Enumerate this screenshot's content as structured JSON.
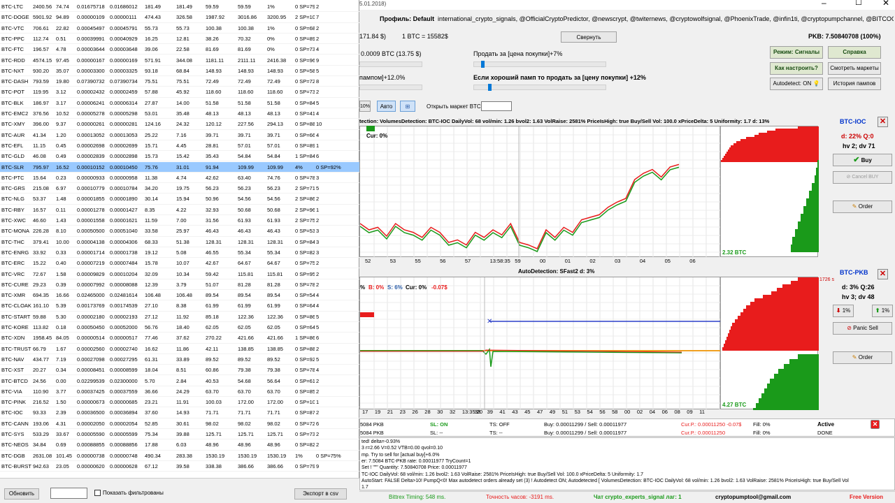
{
  "table": {
    "rows": [
      [
        "BTC-LTC",
        "2400.56",
        "74.74",
        "0.01675718",
        "0.01686012",
        "181.49",
        "181.49",
        "59.59",
        "59.59",
        "1%",
        "0 SP=79%",
        "2"
      ],
      [
        "BTC-DOGE",
        "5901.92",
        "94.89",
        "0.00000109",
        "0.00000111",
        "474.43",
        "326.58",
        "1987.92",
        "3016.86",
        "3200.95",
        "2 SP=100%",
        "7"
      ],
      [
        "BTC-VTC",
        "706.61",
        "22.82",
        "0.00045497",
        "0.00045791",
        "55.73",
        "55.73",
        "100.38",
        "100.38",
        "1%",
        "0 SP=68%",
        "2"
      ],
      [
        "BTC-PPC",
        "112.74",
        "0.51",
        "0.00039991",
        "0.00040929",
        "16.25",
        "12.81",
        "38.26",
        "70.32",
        "0%",
        "0 SP=89%",
        "2"
      ],
      [
        "BTC-FTC",
        "196.57",
        "4.78",
        "0.00003644",
        "0.00003648",
        "39.06",
        "22.58",
        "81.69",
        "81.69",
        "0%",
        "0 SP=73%",
        "4"
      ],
      [
        "BTC-RDD",
        "4574.15",
        "97.45",
        "0.00000167",
        "0.00000169",
        "571.91",
        "344.08",
        "1181.11",
        "2111.11",
        "2416.38",
        "0 SP=96%",
        "9"
      ],
      [
        "BTC-NXT",
        "930.20",
        "35.07",
        "0.00003300",
        "0.00003325",
        "93.18",
        "68.84",
        "148.93",
        "148.93",
        "148.93",
        "0 SP=58%",
        "5"
      ],
      [
        "BTC-DASH",
        "793.59",
        "19.80",
        "0.07390732",
        "0.07390734",
        "75.51",
        "75.51",
        "72.49",
        "72.49",
        "72.49",
        "0 SP=72%",
        "8"
      ],
      [
        "BTC-POT",
        "119.95",
        "3.12",
        "0.00002432",
        "0.00002459",
        "57.88",
        "45.92",
        "118.60",
        "118.60",
        "118.60",
        "0 SP=73%",
        "2"
      ],
      [
        "BTC-BLK",
        "186.97",
        "3.17",
        "0.00006241",
        "0.00006314",
        "27.87",
        "14.00",
        "51.58",
        "51.58",
        "51.58",
        "0 SP=84%",
        "5"
      ],
      [
        "BTC-EMC2",
        "376.56",
        "10.52",
        "0.00005278",
        "0.00005298",
        "53.01",
        "35.48",
        "48.13",
        "48.13",
        "48.13",
        "0 SP=41%",
        "4"
      ],
      [
        "BTC-XMY",
        "396.00",
        "9.37",
        "0.00000261",
        "0.00000281",
        "124.16",
        "24.32",
        "120.12",
        "227.56",
        "294.13",
        "0 SP=88%",
        "10"
      ],
      [
        "BTC-AUR",
        "41.34",
        "1.20",
        "0.00013052",
        "0.00013053",
        "25.22",
        "7.16",
        "39.71",
        "39.71",
        "39.71",
        "0 SP=66%",
        "4"
      ],
      [
        "BTC-EFL",
        "11.15",
        "0.45",
        "0.00002698",
        "0.00002699",
        "15.71",
        "4.45",
        "28.81",
        "57.01",
        "57.01",
        "0 SP=89%",
        "1"
      ],
      [
        "BTC-GLD",
        "46.08",
        "0.49",
        "0.00002839",
        "0.00002898",
        "15.73",
        "15.42",
        "35.43",
        "54.84",
        "54.84",
        "1 SP=84%",
        "6"
      ],
      [
        "BTC-SLR",
        "795.97",
        "16.52",
        "0.00010152",
        "0.00010450",
        "75.76",
        "31.01",
        "91.94",
        "109.99",
        "109.99",
        "4%",
        "0 SP=92%",
        "2"
      ],
      [
        "BTC-PTC",
        "15.64",
        "0.23",
        "0.00000933",
        "0.00000958",
        "11.38",
        "4.74",
        "42.62",
        "63.40",
        "74.76",
        "0 SP=78%",
        "3"
      ],
      [
        "BTC-GRS",
        "215.08",
        "6.97",
        "0.00010779",
        "0.00010784",
        "34.20",
        "19.75",
        "56.23",
        "56.23",
        "56.23",
        "2 SP=71%",
        "5"
      ],
      [
        "BTC-NLG",
        "53.37",
        "1.48",
        "0.00001855",
        "0.00001890",
        "30.14",
        "15.94",
        "50.96",
        "54.56",
        "54.56",
        "2 SP=86%",
        "2"
      ],
      [
        "BTC-RBY",
        "16.57",
        "0.11",
        "0.00001278",
        "0.00001427",
        "8.35",
        "4.22",
        "32.93",
        "50.68",
        "50.68",
        "2 SP=96%",
        "1"
      ],
      [
        "BTC-XWC",
        "46.60",
        "1.43",
        "0.00001558",
        "0.00001621",
        "11.59",
        "7.00",
        "31.56",
        "61.93",
        "61.93",
        "2 SP=75%",
        "2"
      ],
      [
        "BTC-MONA",
        "226.28",
        "8.10",
        "0.00050500",
        "0.00051040",
        "33.58",
        "25.97",
        "46.43",
        "46.43",
        "46.43",
        "0 SP=53%",
        "3"
      ],
      [
        "BTC-THC",
        "379.41",
        "10.00",
        "0.00004138",
        "0.00004306",
        "68.33",
        "51.38",
        "128.31",
        "128.31",
        "128.31",
        "0 SP=84%",
        "3"
      ],
      [
        "BTC-ENRG",
        "33.92",
        "0.33",
        "0.00001714",
        "0.00001738",
        "19.12",
        "5.08",
        "46.55",
        "55.34",
        "55.34",
        "0 SP=82%",
        "3"
      ],
      [
        "BTC-ERC",
        "15.22",
        "0.40",
        "0.00007219",
        "0.00007484",
        "15.78",
        "10.07",
        "42.67",
        "64.67",
        "64.67",
        "0 SP=75%",
        "2"
      ],
      [
        "BTC-VRC",
        "72.67",
        "1.58",
        "0.00009829",
        "0.00010204",
        "32.09",
        "10.34",
        "59.42",
        "115.81",
        "115.81",
        "0 SP=95%",
        "2"
      ],
      [
        "BTC-CURE",
        "29.23",
        "0.39",
        "0.00007992",
        "0.00008088",
        "12.39",
        "3.79",
        "51.07",
        "81.28",
        "81.28",
        "0 SP=78%",
        "2"
      ],
      [
        "BTC-XMR",
        "694.35",
        "16.66",
        "0.02465000",
        "0.02481614",
        "106.48",
        "106.48",
        "89.54",
        "89.54",
        "89.54",
        "0 SP=54%",
        "4"
      ],
      [
        "BTC-CLOAK",
        "161.10",
        "5.39",
        "0.00173769",
        "0.00174539",
        "27.10",
        "8.38",
        "61.99",
        "61.99",
        "61.99",
        "0 SP=64%",
        "4"
      ],
      [
        "BTC-START",
        "59.88",
        "5.30",
        "0.00002180",
        "0.00002193",
        "27.12",
        "11.92",
        "85.18",
        "122.36",
        "122.36",
        "0 SP=86%",
        "5"
      ],
      [
        "BTC-KORE",
        "113.82",
        "0.18",
        "0.00050450",
        "0.00052000",
        "56.76",
        "18.40",
        "62.05",
        "62.05",
        "62.05",
        "0 SP=64%",
        "5"
      ],
      [
        "BTC-XDN",
        "1958.45",
        "84.05",
        "0.00000514",
        "0.00000517",
        "77.46",
        "37.62",
        "270.22",
        "421.66",
        "421.66",
        "1 SP=86%",
        "6"
      ],
      [
        "BTC-TRUST",
        "66.79",
        "1.67",
        "0.00002560",
        "0.00002740",
        "16.62",
        "11.86",
        "42.11",
        "138.85",
        "138.85",
        "0 SP=88%",
        "2"
      ],
      [
        "BTC-NAV",
        "434.77",
        "7.19",
        "0.00027098",
        "0.00027295",
        "61.31",
        "33.89",
        "89.52",
        "89.52",
        "89.52",
        "0 SP=92%",
        "5"
      ],
      [
        "BTC-XST",
        "20.27",
        "0.34",
        "0.00008451",
        "0.00008599",
        "18.04",
        "8.51",
        "60.86",
        "79.38",
        "79.38",
        "0 SP=78%",
        "4"
      ],
      [
        "BTC-BTCD",
        "24.56",
        "0.00",
        "0.02299539",
        "0.02300000",
        "5.70",
        "2.84",
        "40.53",
        "54.68",
        "56.64",
        "0 SP=61%",
        "2"
      ],
      [
        "BTC-VIA",
        "110.90",
        "3.77",
        "0.00037425",
        "0.00037559",
        "36.66",
        "24.29",
        "63.70",
        "63.70",
        "63.70",
        "0 SP=85%",
        "2"
      ],
      [
        "BTC-PINK",
        "216.52",
        "1.50",
        "0.00000673",
        "0.00000685",
        "23.21",
        "11.91",
        "100.03",
        "172.00",
        "172.00",
        "0 SP=100%",
        "1"
      ],
      [
        "BTC-IOC",
        "93.33",
        "2.39",
        "0.00036500",
        "0.00036894",
        "37.60",
        "14.93",
        "71.71",
        "71.71",
        "71.71",
        "0 SP=87%",
        "2"
      ],
      [
        "BTC-CANN",
        "193.06",
        "4.31",
        "0.00002050",
        "0.00002054",
        "52.85",
        "30.61",
        "98.02",
        "98.02",
        "98.02",
        "0 SP=72%",
        "6"
      ],
      [
        "BTC-SYS",
        "533.29",
        "33.67",
        "0.00005590",
        "0.00005599",
        "75.34",
        "39.88",
        "125.71",
        "125.71",
        "125.71",
        "0 SP=73%",
        "2"
      ],
      [
        "BTC-NEOS",
        "34.84",
        "0.69",
        "0.00088855",
        "0.00088856",
        "17.88",
        "6.03",
        "48.96",
        "48.96",
        "48.96",
        "0 SP=82%",
        "2"
      ],
      [
        "BTC-DGB",
        "2631.08",
        "101.45",
        "0.00000738",
        "0.00000748",
        "490.34",
        "283.38",
        "1530.19",
        "1530.19",
        "1530.19",
        "1%",
        "0 SP=75%",
        "8"
      ],
      [
        "BTC-BURST",
        "942.63",
        "23.05",
        "0.00000620",
        "0.00000628",
        "67.12",
        "39.58",
        "338.38",
        "386.66",
        "386.66",
        "0 SP=79%",
        "9"
      ]
    ],
    "selected_index": 15
  },
  "left_bottom": {
    "refresh_label": "Обновить",
    "filter_label": "Показать фильтрованы",
    "export_label": "Экспорт в csv"
  },
  "top": {
    "date_fragment": "5.01.2018)",
    "profile_label": "Профиль: Default",
    "channels": "international_crypto_signals, @OfficialCryptoPredictor, @newscrypt, @twiternews, @cryptowolfsignal, @PhoenixTrade, @infin1ti, @cryptopumpchannel, @BITCOGNITO",
    "balance": "171.84 $)",
    "btc_rate": "1 BTC = 15582$",
    "collapse_label": "Свернуть",
    "pkb_label": "PKB: 7.50840708  (100%)",
    "bought": "0.0009 BTC  (13.75 $)",
    "sell_label": "Продать за [цена покупки]+7%",
    "pump_label": "пампом]+12.0%",
    "good_pump_label": "Если хороший памп то продать за [цену покупки] +12%",
    "mode_signals": "Режим: Сигналы",
    "help": "Справка",
    "how_setup": "Как настроить?",
    "view_markets": "Смотреть маркеты",
    "autodetect": "Autodetect: ON",
    "pump_history": "История пампов",
    "pct_label": "10%",
    "auto_label": "Авто",
    "open_market_label": "Открыть маркет BTC-"
  },
  "panel1": {
    "info": "tection: VolumesDetection: BTC-IOC DailyVol: 68  vol/min: 1.26  bvol2: 1.63 VolRaise: 2581% PriceIsHigh: true Buy/Sell Vol: 100.0 xPriceDelta: 5 Uniformity: 1.7 d: 13%",
    "cur": "Cur: 0%",
    "market": "BTC-IOC",
    "stat1": "d: 22% Q:0",
    "stat2": "hv 2; dv 71",
    "buy": "Buy",
    "cancel_buy": "Cancel BUY",
    "order": "Order",
    "depth_label": "2.32 BTC",
    "x_ticks": [
      "52",
      "53",
      "55",
      "56",
      "57",
      "13:58:35",
      "59",
      "00",
      "01",
      "02",
      "03",
      "04",
      "05",
      "06"
    ],
    "price_line": [
      0.55,
      0.6,
      0.58,
      0.65,
      0.55,
      0.6,
      0.62,
      0.66,
      0.58,
      0.62,
      0.7,
      0.68,
      0.72,
      0.62,
      0.66,
      0.6,
      0.64,
      0.55,
      0.7,
      0.72,
      0.75,
      0.6,
      0.66,
      0.58,
      0.62,
      0.52,
      0.5,
      0.48,
      0.42,
      0.38,
      0.35,
      0.2,
      0.15,
      0.12,
      0.18,
      0.1,
      0.08
    ]
  },
  "panel2": {
    "title": "AutoDetection:  SFast2  d: 3%",
    "legend_b": "B: 0%",
    "legend_s": "S: 6%",
    "legend_cur": "Cur: 0%",
    "legend_pl": "-0.07$",
    "legend_pct": "%",
    "market": "BTC-PKB",
    "seconds": "1726 s",
    "stat1": "d: 3% Q:26",
    "stat2": "hv 3; dv 48",
    "down_pct": "1%",
    "up_pct": "1%",
    "panic_sell": "Panic Sell",
    "order": "Order",
    "depth_label": "4.27 BTC",
    "x_ticks": [
      "17",
      "19",
      "21",
      "23",
      "26",
      "28",
      "30",
      "32",
      "13:35:20",
      "38",
      "39",
      "41",
      "43",
      "45",
      "47",
      "49",
      "51",
      "53",
      "54",
      "56",
      "58",
      "00",
      "02",
      "04",
      "06",
      "08",
      "09",
      "11"
    ]
  },
  "orders": {
    "row1": {
      "market": "5084 PKB",
      "sl": "SL: ON",
      "ts": "TS: OFF",
      "buysell": "Buy: 0.00011299 / Sell: 0.00011977",
      "cur": "Cur.P.: 0.00011250 -0.07$",
      "fill": "Fill: 0%",
      "status": "Active"
    },
    "row2": {
      "market": "5084 PKB",
      "sl": "SL: --",
      "ts": "TS: --",
      "buysell": "Buy: 0.00011299 / Sell: 0.00011977",
      "cur": "Cur.P.: 0.00011250",
      "fill": "Fill: 0%",
      "status": "DONE"
    }
  },
  "log": [
    "ted! delta=-0.93%",
    "3 r=2.66 V=0.52 VTB=0.00 qvol=0.10",
    "mp. Try to sell for [actual buy]+6.0%",
    "er: 7.5084 BTC-PKB rate: 0.00011977  TryCount=1",
    "Set ! \"\"\" Quantity: 7.50840708 Price: 0.00011977",
    "TC-IOC DailyVol: 68  vol/min: 1.26  bvol2: 1.63 VolRaise: 2581% PriceIsHigh: true Buy/Sell Vol: 100.0 xPriceDelta: 5 Uniformity: 1.7",
    "AutoStart: FALSE Delta>10!  PumpQ<0!  Max autodetect orders already set (3) !  Autodetect ON;  Autodetected  [ VolumesDetection: BTC-IOC  DailyVol: 68  vol/min: 1.26  bvol2: 1.63 VolRaise: 2581% PriceIsHigh: true Buy/Sell Vol",
    "1.7"
  ],
  "status": {
    "timing": "Bittrex Timing: 548 ms.",
    "clock": "Точность часов: -3191 ms.",
    "chat": "Чат crypto_experts_signal лаг: 1",
    "email": "cryptopumptool@gmail.com",
    "free": "Free Version"
  },
  "colors": {
    "green": "#1a9a1a",
    "red": "#e81c1c",
    "selected_row": "#99c9ff"
  }
}
